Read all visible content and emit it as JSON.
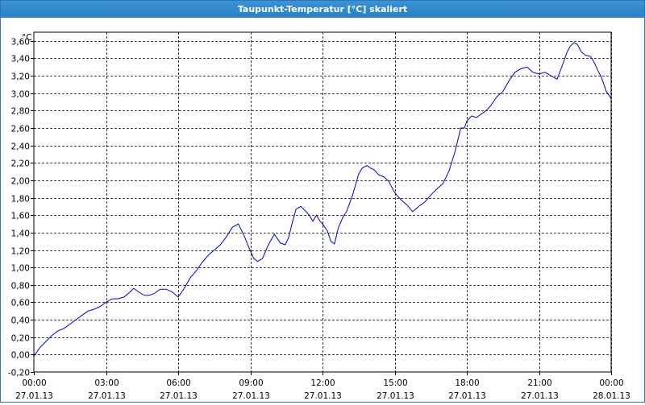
{
  "window": {
    "title": "Taupunkt-Temperatur [°C] skaliert"
  },
  "chart_data": {
    "type": "line",
    "title": "Taupunkt-Temperatur [°C] skaliert",
    "ylabel": "°C",
    "xlabel": "",
    "ylim": [
      -0.2,
      3.7
    ],
    "y_ticks": [
      -0.2,
      0.0,
      0.2,
      0.4,
      0.6,
      0.8,
      1.0,
      1.2,
      1.4,
      1.6,
      1.8,
      2.0,
      2.2,
      2.4,
      2.6,
      2.8,
      3.0,
      3.2,
      3.4,
      3.6
    ],
    "y_tick_labels": [
      "-0,20",
      "0,00",
      "0,20",
      "0,40",
      "0,60",
      "0,80",
      "1,00",
      "1,20",
      "1,40",
      "1,60",
      "1,80",
      "2,00",
      "2,20",
      "2,40",
      "2,60",
      "2,80",
      "3,00",
      "3,20",
      "3,40",
      "3,60"
    ],
    "xlim": [
      0,
      24
    ],
    "x_ticks": [
      {
        "time": "00:00",
        "date": "27.01.13"
      },
      {
        "time": "03:00",
        "date": "27.01.13"
      },
      {
        "time": "06:00",
        "date": "27.01.13"
      },
      {
        "time": "09:00",
        "date": "27.01.13"
      },
      {
        "time": "12:00",
        "date": "27.01.13"
      },
      {
        "time": "15:00",
        "date": "27.01.13"
      },
      {
        "time": "18:00",
        "date": "27.01.13"
      },
      {
        "time": "21:00",
        "date": "27.01.13"
      },
      {
        "time": "00:00",
        "date": "28.01.13"
      }
    ],
    "grid": true,
    "line_color": "#0000cc",
    "series": [
      {
        "x": [
          0.0,
          0.25,
          0.5,
          0.75,
          1.0,
          1.25,
          1.5,
          1.75,
          2.0,
          2.25,
          2.5,
          2.75,
          3.0,
          3.25,
          3.5,
          3.75,
          4.0,
          4.15,
          4.4,
          4.6,
          4.8,
          5.0,
          5.25,
          5.5,
          5.75,
          6.0,
          6.25,
          6.5,
          6.75,
          7.0,
          7.25,
          7.5,
          7.75,
          8.0,
          8.25,
          8.5,
          8.75,
          8.95,
          9.15,
          9.3,
          9.5,
          9.75,
          10.0,
          10.25,
          10.45,
          10.6,
          10.75,
          10.9,
          11.1,
          11.25,
          11.45,
          11.6,
          11.75,
          11.9,
          12.0,
          12.2,
          12.35,
          12.5,
          12.65,
          12.85,
          13.0,
          13.25,
          13.5,
          13.65,
          13.85,
          14.0,
          14.15,
          14.35,
          14.55,
          14.75,
          15.0,
          15.25,
          15.5,
          15.75,
          16.0,
          16.25,
          16.5,
          16.75,
          17.0,
          17.25,
          17.5,
          17.75,
          17.9,
          18.0,
          18.2,
          18.4,
          18.6,
          18.8,
          19.0,
          19.25,
          19.5,
          19.75,
          20.0,
          20.25,
          20.5,
          20.75,
          21.0,
          21.25,
          21.5,
          21.75,
          22.0,
          22.15,
          22.3,
          22.45,
          22.6,
          22.75,
          22.9,
          23.15,
          23.3,
          23.45,
          23.6,
          23.8,
          24.0
        ],
        "y": [
          -0.02,
          0.08,
          0.15,
          0.22,
          0.27,
          0.3,
          0.35,
          0.4,
          0.45,
          0.5,
          0.52,
          0.55,
          0.6,
          0.64,
          0.64,
          0.66,
          0.72,
          0.76,
          0.71,
          0.68,
          0.68,
          0.7,
          0.75,
          0.75,
          0.72,
          0.66,
          0.76,
          0.88,
          0.96,
          1.06,
          1.14,
          1.2,
          1.26,
          1.35,
          1.46,
          1.5,
          1.36,
          1.22,
          1.1,
          1.07,
          1.1,
          1.26,
          1.38,
          1.28,
          1.26,
          1.35,
          1.52,
          1.67,
          1.7,
          1.66,
          1.6,
          1.53,
          1.6,
          1.53,
          1.5,
          1.42,
          1.3,
          1.27,
          1.45,
          1.58,
          1.64,
          1.83,
          2.07,
          2.14,
          2.17,
          2.14,
          2.12,
          2.06,
          2.04,
          1.99,
          1.86,
          1.78,
          1.72,
          1.64,
          1.7,
          1.75,
          1.83,
          1.9,
          1.96,
          2.1,
          2.32,
          2.6,
          2.6,
          2.68,
          2.74,
          2.72,
          2.76,
          2.8,
          2.86,
          2.96,
          3.02,
          3.14,
          3.24,
          3.28,
          3.3,
          3.24,
          3.22,
          3.24,
          3.2,
          3.16,
          3.34,
          3.46,
          3.54,
          3.58,
          3.56,
          3.48,
          3.44,
          3.42,
          3.35,
          3.26,
          3.18,
          3.02,
          2.94
        ]
      }
    ]
  }
}
